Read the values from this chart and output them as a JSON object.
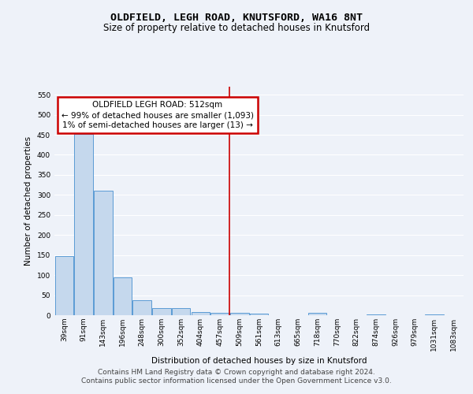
{
  "title": "OLDFIELD, LEGH ROAD, KNUTSFORD, WA16 8NT",
  "subtitle": "Size of property relative to detached houses in Knutsford",
  "xlabel": "Distribution of detached houses by size in Knutsford",
  "ylabel": "Number of detached properties",
  "categories": [
    "39sqm",
    "91sqm",
    "143sqm",
    "196sqm",
    "248sqm",
    "300sqm",
    "352sqm",
    "404sqm",
    "457sqm",
    "509sqm",
    "561sqm",
    "613sqm",
    "665sqm",
    "718sqm",
    "770sqm",
    "822sqm",
    "874sqm",
    "926sqm",
    "979sqm",
    "1031sqm",
    "1083sqm"
  ],
  "values": [
    148,
    452,
    311,
    94,
    38,
    17,
    18,
    7,
    5,
    5,
    3,
    0,
    0,
    5,
    0,
    0,
    2,
    0,
    0,
    2,
    0
  ],
  "bar_color": "#c5d8ed",
  "bar_edge_color": "#5b9bd5",
  "vline_x": 9.0,
  "vline_color": "#cc0000",
  "annotation_text": "OLDFIELD LEGH ROAD: 512sqm\n← 99% of detached houses are smaller (1,093)\n1% of semi-detached houses are larger (13) →",
  "annotation_box_color": "#ffffff",
  "annotation_box_edge_color": "#cc0000",
  "ylim": [
    0,
    570
  ],
  "yticks": [
    0,
    50,
    100,
    150,
    200,
    250,
    300,
    350,
    400,
    450,
    500,
    550
  ],
  "footer_line1": "Contains HM Land Registry data © Crown copyright and database right 2024.",
  "footer_line2": "Contains public sector information licensed under the Open Government Licence v3.0.",
  "bg_color": "#eef2f9",
  "plot_bg_color": "#eef2f9",
  "title_fontsize": 9.5,
  "subtitle_fontsize": 8.5,
  "axis_label_fontsize": 7.5,
  "tick_fontsize": 6.5,
  "footer_fontsize": 6.5,
  "grid_color": "#ffffff",
  "annotation_fontsize": 7.5
}
